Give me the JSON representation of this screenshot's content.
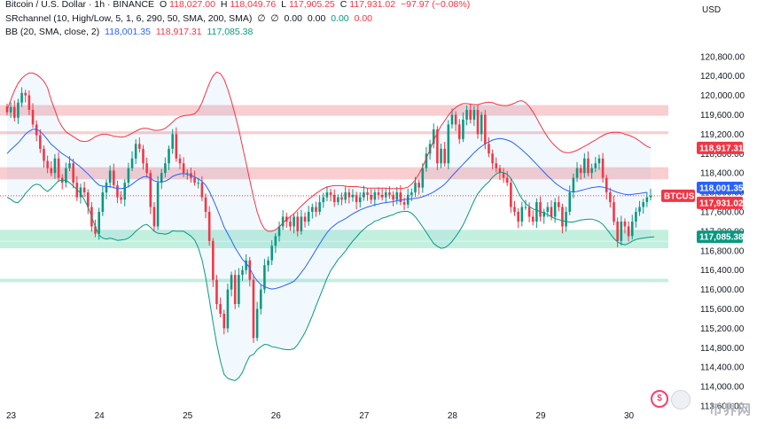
{
  "header": {
    "symbol": "Bitcoin / U.S. Dollar · 1h · BINANCE",
    "ohlc": [
      {
        "label": "O",
        "value": "118,027.00"
      },
      {
        "label": "H",
        "value": "118,049.76"
      },
      {
        "label": "L",
        "value": "117,905.25"
      },
      {
        "label": "C",
        "value": "117,931.02"
      }
    ],
    "change": "−97.97 (−0.08%)",
    "currency": "USD"
  },
  "indicators": {
    "sr": {
      "name": "SRchannel (10, High/Low, 5, 1, 6, 290, 50, SMA, 200, SMA)",
      "glyph1": "∅",
      "glyph2": "∅",
      "v1": "0.00",
      "v2": "0.00",
      "v3": "0.00",
      "v4": "0.00"
    },
    "bb": {
      "name": "BB (20, SMA, close, 2)",
      "basis": "118,001.35",
      "upper": "118,917.31",
      "lower": "117,085.38"
    }
  },
  "colors": {
    "up": "#089981",
    "down": "#f23645",
    "basis": "#2962ff",
    "upper": "#f23645",
    "lower": "#089981",
    "resistance": "#f7c5c9",
    "support": "#b9ecd9"
  },
  "price_tags": [
    {
      "label": "118,917.31",
      "price": 118917.31,
      "color": "#f23645"
    },
    {
      "label": "118,001.35",
      "price": 118001.35,
      "color": "#2962ff"
    },
    {
      "label": "BTCUSD",
      "price": 117931.02,
      "color": "#f23645"
    },
    {
      "label": "117,931.02",
      "price": 117931.02,
      "color": "#f23645"
    },
    {
      "label": "117,085.38",
      "price": 117085.38,
      "color": "#089981"
    }
  ],
  "watermark": "币界网",
  "chart_data": {
    "type": "candlestick",
    "title": "Bitcoin / U.S. Dollar · 1h · BINANCE",
    "xlabel": "",
    "ylabel": "USD",
    "ylim": [
      113600,
      121600
    ],
    "y_ticks": [
      "113,600.00",
      "114,000.00",
      "114,400.00",
      "114,800.00",
      "115,200.00",
      "115,600.00",
      "116,000.00",
      "116,400.00",
      "116,800.00",
      "117,200.00",
      "117,600.00",
      "118,000.00",
      "118,400.00",
      "118,800.00",
      "119,200.00",
      "119,600.00",
      "120,000.00",
      "120,400.00",
      "120,800.00"
    ],
    "x_ticks": [
      "23",
      "24",
      "25",
      "26",
      "27",
      "28",
      "29",
      "30"
    ],
    "x_tick_index": [
      0,
      24,
      48,
      72,
      96,
      120,
      144,
      168
    ],
    "sr_zones": [
      {
        "low": 119580,
        "high": 119800,
        "type": "resistance"
      },
      {
        "low": 119200,
        "high": 119260,
        "type": "resistance"
      },
      {
        "low": 118270,
        "high": 118520,
        "type": "resistance"
      },
      {
        "low": 117000,
        "high": 117230,
        "type": "support"
      },
      {
        "low": 116850,
        "high": 116990,
        "type": "support"
      },
      {
        "low": 116150,
        "high": 116220,
        "type": "support"
      }
    ],
    "close": [
      119650,
      119760,
      119540,
      119850,
      120050,
      120000,
      119700,
      119400,
      119180,
      118900,
      118650,
      118500,
      118400,
      118700,
      118300,
      118200,
      118500,
      118600,
      118200,
      117900,
      118100,
      118000,
      117700,
      117300,
      117150,
      117600,
      118000,
      118200,
      118450,
      118150,
      117900,
      117850,
      118200,
      118500,
      118700,
      119000,
      118900,
      118600,
      118400,
      117700,
      117300,
      118200,
      118400,
      118600,
      118900,
      119200,
      118700,
      118600,
      118400,
      118400,
      118300,
      118200,
      118200,
      117900,
      117600,
      117000,
      116200,
      115700,
      115500,
      115200,
      116000,
      116300,
      115700,
      116300,
      116400,
      116600,
      116200,
      115000,
      115600,
      116000,
      116500,
      116600,
      116900,
      117100,
      117300,
      117500,
      117400,
      117300,
      117500,
      117200,
      117500,
      117400,
      117600,
      117700,
      117600,
      117800,
      117900,
      118000,
      117950,
      117800,
      117900,
      117850,
      118000,
      117900,
      117950,
      117800,
      117900,
      118000,
      117950,
      117850,
      118000,
      117950,
      117900,
      118000,
      117950,
      117850,
      118000,
      117800,
      117750,
      117950,
      118000,
      118200,
      118100,
      118500,
      118800,
      119000,
      119300,
      118600,
      118900,
      118600,
      119400,
      119600,
      119400,
      119100,
      119500,
      119700,
      119500,
      119700,
      119200,
      119600,
      119000,
      118800,
      118600,
      118500,
      118400,
      118300,
      118200,
      117700,
      117600,
      117400,
      117700,
      117700,
      117500,
      117400,
      117800,
      117500,
      117600,
      117700,
      117500,
      117800,
      117700,
      117300,
      117600,
      118000,
      118300,
      118500,
      118400,
      118700,
      118400,
      118500,
      118600,
      118700,
      118300,
      118000,
      117800,
      117400,
      117000,
      117400,
      117300,
      117100,
      117400,
      117600,
      117700,
      117800,
      117900,
      117931
    ],
    "bb_basis": [
      118800,
      118880,
      118950,
      119020,
      119110,
      119200,
      119260,
      119300,
      119300,
      119260,
      119180,
      119090,
      118990,
      118930,
      118860,
      118800,
      118750,
      118700,
      118640,
      118580,
      118520,
      118450,
      118380,
      118300,
      118220,
      118150,
      118130,
      118120,
      118120,
      118100,
      118080,
      118080,
      118090,
      118120,
      118170,
      118230,
      118280,
      118320,
      118330,
      118290,
      118240,
      118220,
      118220,
      118230,
      118270,
      118330,
      118360,
      118380,
      118390,
      118370,
      118350,
      118320,
      118280,
      118230,
      118150,
      118020,
      117860,
      117680,
      117490,
      117290,
      117150,
      117010,
      116860,
      116740,
      116620,
      116540,
      116440,
      116280,
      116180,
      116100,
      116060,
      116030,
      116010,
      116020,
      116040,
      116070,
      116100,
      116130,
      116170,
      116250,
      116350,
      116450,
      116570,
      116690,
      116820,
      116940,
      117060,
      117170,
      117260,
      117320,
      117380,
      117420,
      117460,
      117510,
      117560,
      117600,
      117640,
      117670,
      117700,
      117720,
      117750,
      117760,
      117780,
      117790,
      117800,
      117810,
      117830,
      117840,
      117850,
      117860,
      117870,
      117880,
      117890,
      117910,
      117940,
      117970,
      118010,
      118060,
      118110,
      118170,
      118250,
      118340,
      118420,
      118500,
      118580,
      118660,
      118740,
      118820,
      118890,
      118950,
      119000,
      119040,
      119080,
      119100,
      119110,
      119100,
      119080,
      119050,
      119000,
      118940,
      118880,
      118810,
      118740,
      118660,
      118580,
      118500,
      118420,
      118340,
      118270,
      118200,
      118140,
      118090,
      118050,
      118020,
      118010,
      118020,
      118040,
      118060,
      118080,
      118100,
      118110,
      118120,
      118110,
      118090,
      118060,
      118030,
      118000,
      117980,
      117960,
      117950,
      117960,
      117970,
      117980,
      117990,
      118001
    ],
    "bb_upper": [
      119700,
      119900,
      120100,
      120250,
      120350,
      120420,
      120460,
      120460,
      120430,
      120370,
      120290,
      120160,
      119900,
      119700,
      119480,
      119350,
      119250,
      119200,
      119150,
      119100,
      119060,
      119050,
      119060,
      119100,
      119150,
      119180,
      119200,
      119200,
      119180,
      119160,
      119150,
      119140,
      119150,
      119180,
      119220,
      119260,
      119300,
      119320,
      119320,
      119300,
      119280,
      119280,
      119290,
      119320,
      119380,
      119450,
      119520,
      119560,
      119580,
      119590,
      119600,
      119620,
      119700,
      119850,
      120050,
      120250,
      120400,
      120480,
      120450,
      120330,
      120130,
      119880,
      119600,
      119300,
      118950,
      118600,
      118250,
      117900,
      117600,
      117380,
      117250,
      117200,
      117200,
      117230,
      117290,
      117370,
      117440,
      117500,
      117560,
      117640,
      117720,
      117790,
      117860,
      117920,
      117980,
      118030,
      118080,
      118110,
      118130,
      118140,
      118140,
      118140,
      118130,
      118120,
      118120,
      118120,
      118110,
      118100,
      118090,
      118090,
      118090,
      118090,
      118090,
      118090,
      118080,
      118080,
      118080,
      118080,
      118090,
      118110,
      118170,
      118260,
      118380,
      118530,
      118700,
      118880,
      119070,
      119230,
      119370,
      119480,
      119590,
      119680,
      119750,
      119800,
      119830,
      119830,
      119820,
      119810,
      119810,
      119830,
      119850,
      119860,
      119850,
      119820,
      119800,
      119790,
      119790,
      119810,
      119840,
      119880,
      119890,
      119850,
      119770,
      119660,
      119530,
      119390,
      119260,
      119140,
      119040,
      118960,
      118890,
      118840,
      118820,
      118820,
      118840,
      118870,
      118910,
      118950,
      118990,
      119040,
      119080,
      119130,
      119170,
      119210,
      119230,
      119240,
      119240,
      119230,
      119200,
      119180,
      119150,
      119110,
      119060,
      119000,
      118950,
      118917
    ],
    "bb_lower": [
      117900,
      117860,
      117800,
      117790,
      117870,
      117980,
      118060,
      118140,
      118170,
      118150,
      118070,
      118020,
      118080,
      118160,
      118240,
      118250,
      118250,
      118200,
      118130,
      118060,
      117980,
      117850,
      117700,
      117500,
      117290,
      117120,
      117060,
      117040,
      117060,
      117040,
      117010,
      117020,
      117030,
      117060,
      117120,
      117200,
      117260,
      117320,
      117340,
      117280,
      117200,
      117160,
      117150,
      117140,
      117160,
      117210,
      117200,
      117200,
      117200,
      117150,
      117100,
      117020,
      116860,
      116610,
      116250,
      115790,
      115320,
      114880,
      114530,
      114250,
      114170,
      114140,
      114120,
      114180,
      114290,
      114480,
      114630,
      114660,
      114760,
      114820,
      114870,
      114860,
      114820,
      114810,
      114790,
      114770,
      114760,
      114760,
      114780,
      114860,
      114980,
      115110,
      115280,
      115460,
      115660,
      115850,
      116040,
      116230,
      116390,
      116500,
      116620,
      116700,
      116790,
      116900,
      117000,
      117080,
      117170,
      117240,
      117310,
      117350,
      117410,
      117430,
      117470,
      117490,
      117520,
      117540,
      117580,
      117600,
      117610,
      117610,
      117570,
      117500,
      117400,
      117290,
      117180,
      117060,
      116950,
      116890,
      116850,
      116860,
      116910,
      116990,
      117090,
      117200,
      117330,
      117490,
      117660,
      117830,
      117970,
      118070,
      118150,
      118220,
      118310,
      118380,
      118420,
      118410,
      118370,
      118290,
      118160,
      118000,
      117870,
      117770,
      117710,
      117660,
      117630,
      117610,
      117580,
      117540,
      117500,
      117460,
      117440,
      117420,
      117400,
      117390,
      117390,
      117410,
      117430,
      117440,
      117450,
      117450,
      117430,
      117400,
      117340,
      117250,
      117150,
      117050,
      116980,
      116940,
      116920,
      116950,
      117000,
      117030,
      117050,
      117060,
      117070,
      117080,
      117085
    ]
  }
}
